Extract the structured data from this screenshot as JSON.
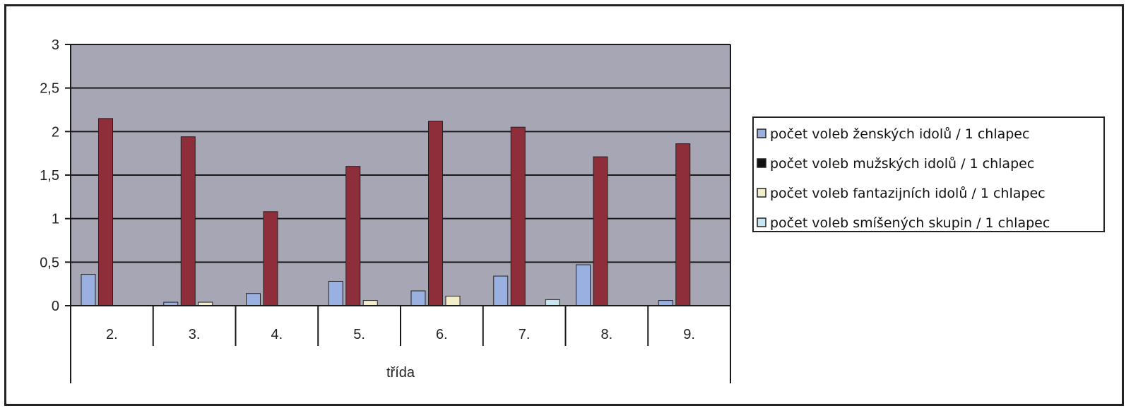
{
  "chart_data": {
    "type": "bar",
    "xlabel": "třída",
    "ylabel": "",
    "ylim": [
      0,
      3
    ],
    "yticks": [
      "0",
      "0,5",
      "1",
      "1,5",
      "2",
      "2,5",
      "3"
    ],
    "categories": [
      "2.",
      "3.",
      "4.",
      "5.",
      "6.",
      "7.",
      "8.",
      "9."
    ],
    "grid": true,
    "legend_position": "right",
    "colors": {
      "plot_background": "#a6a6b4",
      "gridline": "#1a1a1a",
      "axis": "#1a1a1a"
    },
    "series": [
      {
        "name": "počet voleb ženských idolů / 1 chlapec",
        "color": "#9ab0e0",
        "values": [
          0.36,
          0.04,
          0.14,
          0.28,
          0.17,
          0.34,
          0.47,
          0.06
        ]
      },
      {
        "name": "počet voleb mužských idolů / 1 chlapec",
        "color": "#8e2e3a",
        "values": [
          2.15,
          1.94,
          1.08,
          1.6,
          2.12,
          2.05,
          1.71,
          1.86
        ]
      },
      {
        "name": "počet voleb fantazijních idolů / 1 chlapec",
        "color": "#f2eecc",
        "values": [
          0,
          0.04,
          0,
          0.06,
          0.11,
          0,
          0,
          0
        ]
      },
      {
        "name": "počet voleb smíšených skupin / 1 chlapec",
        "color": "#c6e6f2",
        "values": [
          0,
          0,
          0,
          0,
          0,
          0.07,
          0,
          0
        ]
      }
    ]
  }
}
